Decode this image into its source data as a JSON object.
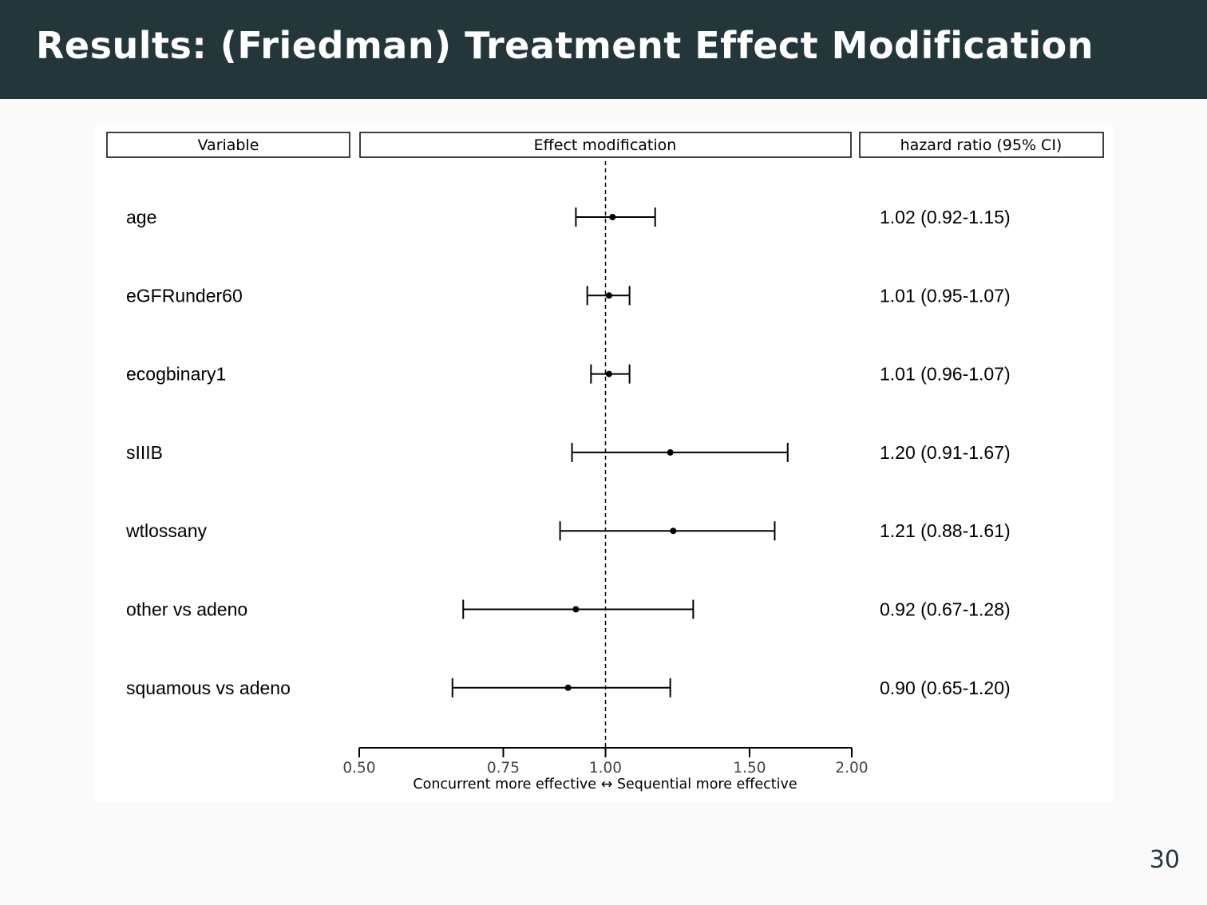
{
  "slide": {
    "title": "Results: (Friedman) Treatment Effect Modification",
    "page_number": "30",
    "header_color": "#23373b",
    "background_color": "#fafafa"
  },
  "chart_data": {
    "type": "forest",
    "headers": {
      "variable": "Variable",
      "plot": "Effect modification",
      "estimate": "hazard ratio (95% CI)"
    },
    "xlabel": "Concurrent more effective ↔ Sequential more effective",
    "x_scale": "log",
    "xlim": [
      0.5,
      2.0
    ],
    "ticks": [
      0.5,
      0.75,
      1.0,
      1.5,
      2.0
    ],
    "tick_labels": [
      "0.50",
      "0.75",
      "1.00",
      "1.50",
      "2.00"
    ],
    "reference_line": 1.0,
    "rows": [
      {
        "variable": "age",
        "hr": 1.02,
        "lower": 0.92,
        "upper": 1.15,
        "label": "1.02 (0.92-1.15)"
      },
      {
        "variable": "eGFRunder60",
        "hr": 1.01,
        "lower": 0.95,
        "upper": 1.07,
        "label": "1.01 (0.95-1.07)"
      },
      {
        "variable": "ecogbinary1",
        "hr": 1.01,
        "lower": 0.96,
        "upper": 1.07,
        "label": "1.01 (0.96-1.07)"
      },
      {
        "variable": "sIIIB",
        "hr": 1.2,
        "lower": 0.91,
        "upper": 1.67,
        "label": "1.20 (0.91-1.67)"
      },
      {
        "variable": "wtlossany",
        "hr": 1.21,
        "lower": 0.88,
        "upper": 1.61,
        "label": "1.21 (0.88-1.61)"
      },
      {
        "variable": "other vs adeno",
        "hr": 0.92,
        "lower": 0.67,
        "upper": 1.28,
        "label": "0.92 (0.67-1.28)"
      },
      {
        "variable": "squamous vs adeno",
        "hr": 0.9,
        "lower": 0.65,
        "upper": 1.2,
        "label": "0.90 (0.65-1.20)"
      }
    ]
  }
}
